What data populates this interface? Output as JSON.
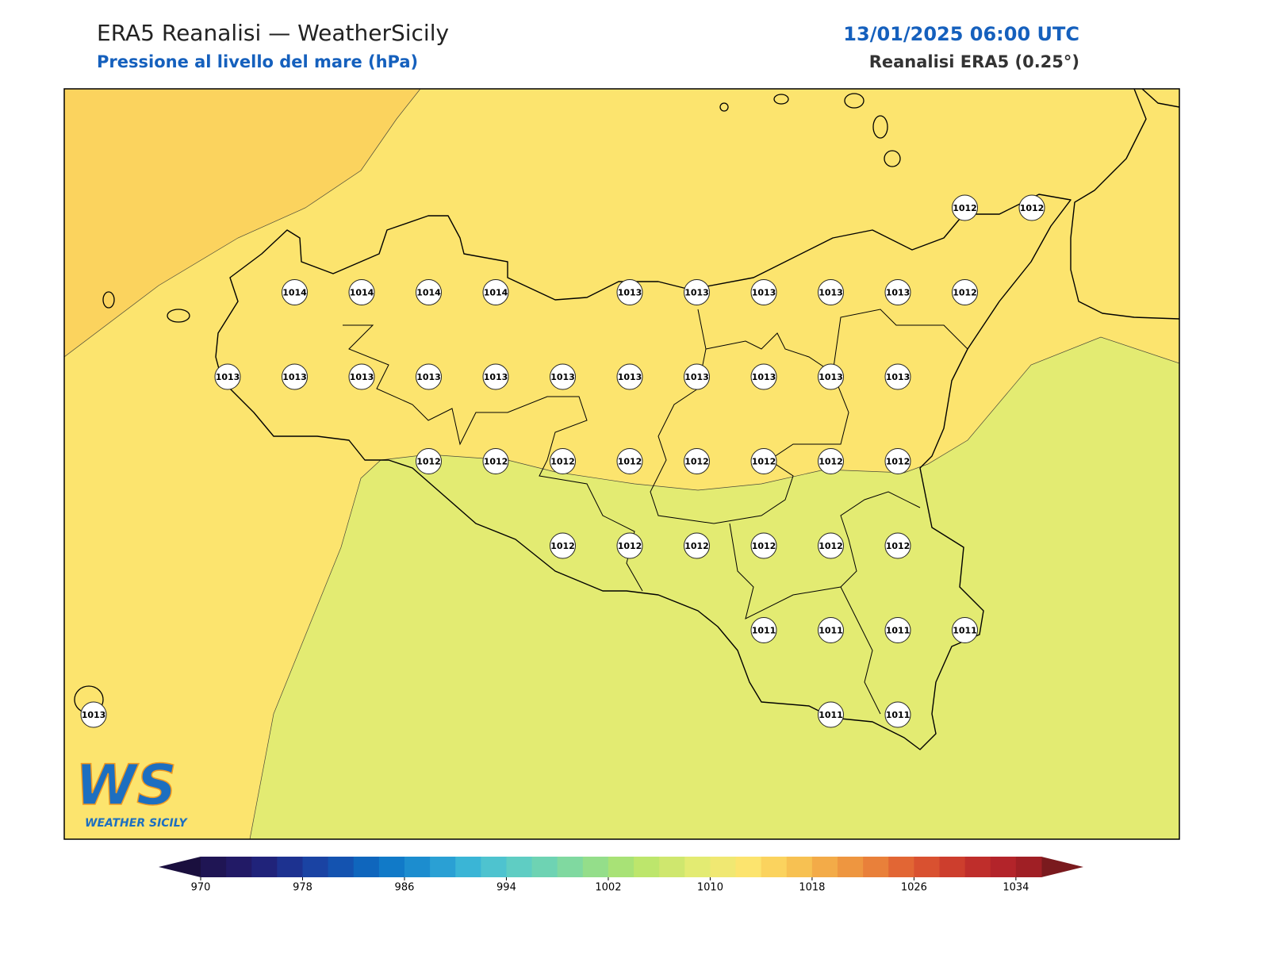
{
  "header": {
    "title": "ERA5 Reanalisi — WeatherSicily",
    "subtitle": "Pressione al livello del mare (hPa)",
    "datetime": "13/01/2025 06:00 UTC",
    "source": "Reanalisi ERA5 (0.25°)"
  },
  "map": {
    "grid": [
      [
        null,
        null,
        null,
        null,
        null,
        null,
        null,
        null,
        null,
        null,
        null,
        null,
        null,
        1012,
        1012
      ],
      [
        null,
        null,
        null,
        1014,
        1014,
        1014,
        1014,
        null,
        1013,
        1013,
        1013,
        1013,
        1013,
        1012,
        null
      ],
      [
        null,
        null,
        1013,
        1013,
        1013,
        1013,
        1013,
        1013,
        1013,
        1013,
        1013,
        1013,
        1013,
        null,
        null
      ],
      [
        null,
        null,
        null,
        null,
        null,
        1012,
        1012,
        1012,
        1012,
        1012,
        1012,
        1012,
        1012,
        null,
        null
      ],
      [
        null,
        null,
        null,
        null,
        null,
        null,
        null,
        1012,
        1012,
        1012,
        1012,
        1012,
        1012,
        null,
        null
      ],
      [
        null,
        null,
        null,
        null,
        null,
        null,
        null,
        null,
        null,
        null,
        1011,
        1011,
        1011,
        1011,
        null
      ],
      [
        1013,
        null,
        null,
        null,
        null,
        null,
        null,
        null,
        null,
        null,
        null,
        1011,
        1011,
        null,
        null
      ]
    ]
  },
  "logo": {
    "text": "WS",
    "caption": "WEATHER SICILY"
  },
  "colorbar": {
    "lim": [
      970,
      1036
    ],
    "ticks": [
      970,
      978,
      986,
      994,
      1002,
      1010,
      1018,
      1026,
      1034
    ],
    "colors": [
      "#1f1554",
      "#221a66",
      "#20237a",
      "#1d3290",
      "#1a43a3",
      "#1453b0",
      "#0f66bd",
      "#117ac8",
      "#1c8dcf",
      "#2aa0d4",
      "#3ab5d6",
      "#4ec3cf",
      "#5fcdc3",
      "#6ed3b3",
      "#80d9a0",
      "#94de8a",
      "#a8e276",
      "#bde66c",
      "#cfe76e",
      "#e3eb72",
      "#f0e872",
      "#fce46e",
      "#fbd35e",
      "#f7c152",
      "#f3ab48",
      "#ee9640",
      "#e9803a",
      "#e26634",
      "#d95130",
      "#cd3e2d",
      "#bf2e2b",
      "#b3242a",
      "#a01f25"
    ],
    "under": "#1a0f3e",
    "over": "#7a1a1e"
  }
}
